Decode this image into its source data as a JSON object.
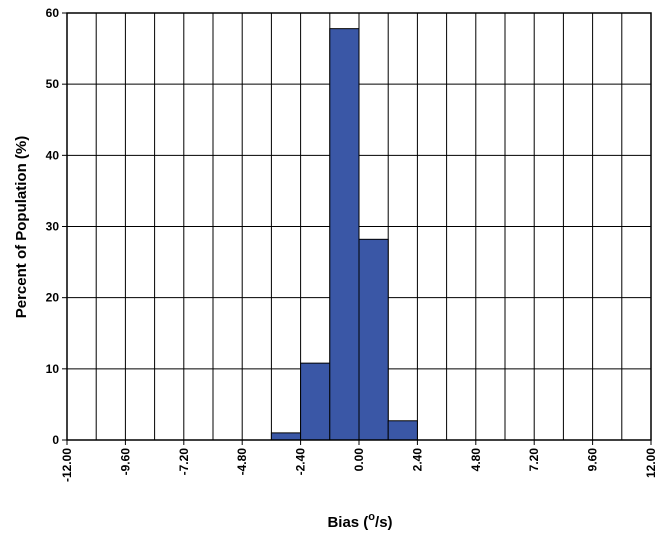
{
  "chart_data": {
    "type": "bar",
    "title": "",
    "xlabel": "Bias (",
    "xlabel_sup": "o",
    "xlabel_suffix": "/s)",
    "ylabel": "Percent of Population (%)",
    "xlim": [
      -12.0,
      12.0
    ],
    "ylim": [
      0,
      60
    ],
    "bin_width": 1.2,
    "yticks": [
      "0",
      "10",
      "20",
      "30",
      "40",
      "50",
      "60"
    ],
    "xticks": [
      "-12.00",
      "-9.60",
      "-7.20",
      "-4.80",
      "-2.40",
      "0.00",
      "2.40",
      "4.80",
      "7.20",
      "9.60",
      "12.00"
    ],
    "bars": [
      {
        "x_start": -3.6,
        "x_end": -2.4,
        "value": 1.0
      },
      {
        "x_start": -2.4,
        "x_end": -1.2,
        "value": 10.8
      },
      {
        "x_start": -1.2,
        "x_end": 0.0,
        "value": 57.8
      },
      {
        "x_start": 0.0,
        "x_end": 1.2,
        "value": 28.2
      },
      {
        "x_start": 1.2,
        "x_end": 2.4,
        "value": 2.7
      }
    ],
    "grid": true,
    "bar_color": "#3a57a6"
  }
}
